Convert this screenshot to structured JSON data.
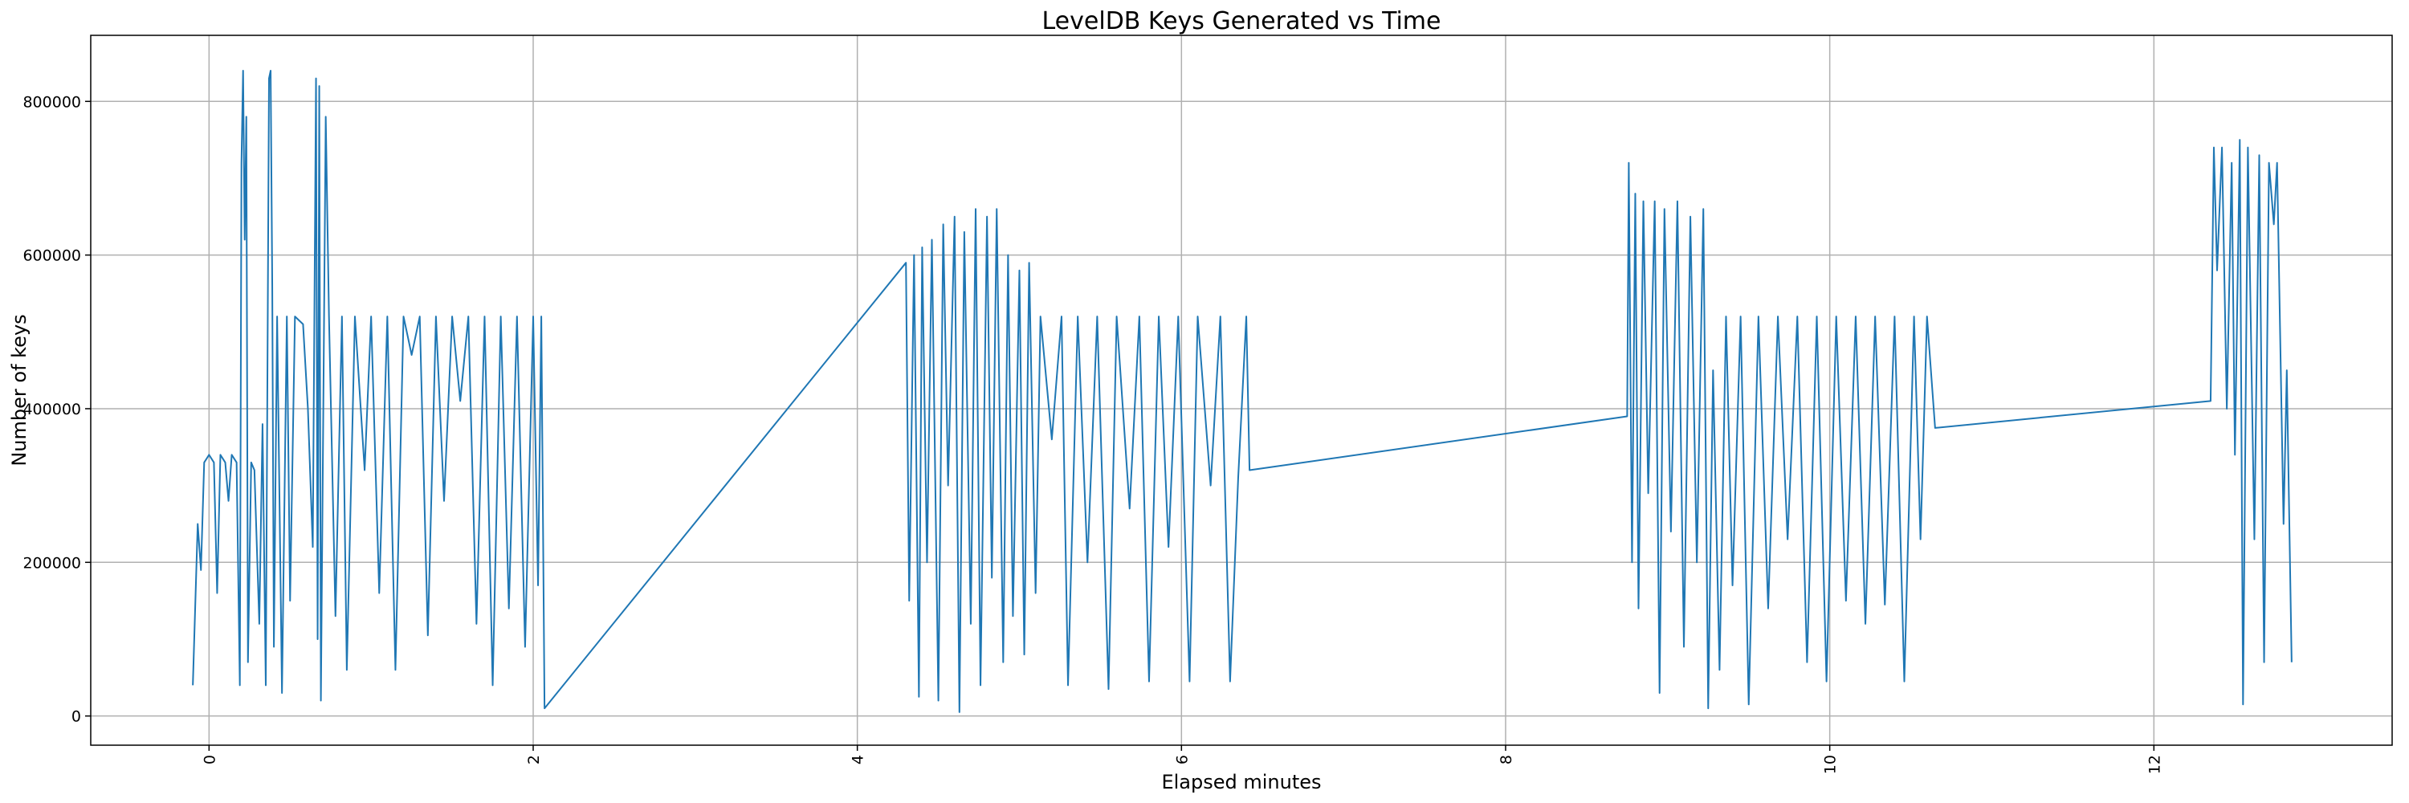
{
  "chart_data": {
    "type": "line",
    "title": "LevelDB Keys Generated vs Time",
    "x_label": "Elapsed minutes",
    "y_label": "Number of keys",
    "color": "#1f77b4",
    "grid": true,
    "xlim": [
      -0.73,
      13.47
    ],
    "ylim": [
      -38000,
      886000
    ],
    "xticks": [
      0,
      2,
      4,
      6,
      8,
      10,
      12
    ],
    "yticks": [
      0,
      200000,
      400000,
      600000,
      800000
    ],
    "x": [
      -0.1,
      -0.07,
      -0.05,
      -0.03,
      0,
      0.03,
      0.05,
      0.07,
      0.1,
      0.12,
      0.14,
      0.17,
      0.19,
      0.2,
      0.21,
      0.22,
      0.23,
      0.24,
      0.26,
      0.28,
      0.31,
      0.33,
      0.35,
      0.37,
      0.38,
      0.39,
      0.4,
      0.42,
      0.45,
      0.48,
      0.5,
      0.53,
      0.58,
      0.61,
      0.64,
      0.66,
      0.67,
      0.68,
      0.69,
      0.72,
      0.74,
      0.78,
      0.82,
      0.85,
      0.9,
      0.96,
      1.0,
      1.05,
      1.1,
      1.15,
      1.2,
      1.25,
      1.3,
      1.35,
      1.4,
      1.45,
      1.5,
      1.55,
      1.6,
      1.65,
      1.7,
      1.75,
      1.8,
      1.85,
      1.9,
      1.95,
      2.0,
      2.03,
      2.05,
      2.07,
      4.3,
      4.32,
      4.35,
      4.38,
      4.4,
      4.43,
      4.46,
      4.5,
      4.53,
      4.56,
      4.6,
      4.63,
      4.66,
      4.7,
      4.73,
      4.76,
      4.8,
      4.83,
      4.86,
      4.9,
      4.93,
      4.96,
      5.0,
      5.03,
      5.06,
      5.1,
      5.13,
      5.2,
      5.26,
      5.3,
      5.36,
      5.42,
      5.48,
      5.55,
      5.6,
      5.68,
      5.74,
      5.8,
      5.86,
      5.92,
      5.98,
      6.05,
      6.1,
      6.18,
      6.24,
      6.3,
      6.35,
      6.4,
      6.42,
      8.75,
      8.76,
      8.78,
      8.8,
      8.82,
      8.85,
      8.88,
      8.92,
      8.95,
      8.98,
      9.02,
      9.06,
      9.1,
      9.14,
      9.18,
      9.22,
      9.25,
      9.28,
      9.32,
      9.36,
      9.4,
      9.45,
      9.5,
      9.56,
      9.62,
      9.68,
      9.74,
      9.8,
      9.86,
      9.92,
      9.98,
      10.04,
      10.1,
      10.16,
      10.22,
      10.28,
      10.34,
      10.4,
      10.46,
      10.52,
      10.56,
      10.6,
      10.65,
      12.35,
      12.37,
      12.39,
      12.42,
      12.45,
      12.48,
      12.5,
      12.53,
      12.55,
      12.58,
      12.62,
      12.65,
      12.68,
      12.71,
      12.74,
      12.76,
      12.8,
      12.82,
      12.85
    ],
    "values": [
      40000,
      250000,
      190000,
      330000,
      340000,
      330000,
      160000,
      340000,
      330000,
      280000,
      340000,
      330000,
      40000,
      720000,
      840000,
      620000,
      780000,
      70000,
      330000,
      320000,
      120000,
      380000,
      40000,
      830000,
      840000,
      560000,
      90000,
      520000,
      30000,
      520000,
      150000,
      520000,
      510000,
      400000,
      220000,
      830000,
      100000,
      820000,
      20000,
      780000,
      520000,
      130000,
      520000,
      60000,
      520000,
      320000,
      520000,
      160000,
      520000,
      60000,
      520000,
      470000,
      520000,
      105000,
      520000,
      280000,
      520000,
      410000,
      520000,
      120000,
      520000,
      40000,
      520000,
      140000,
      520000,
      90000,
      520000,
      170000,
      520000,
      10000,
      590000,
      150000,
      600000,
      25000,
      610000,
      200000,
      620000,
      20000,
      640000,
      300000,
      650000,
      5000,
      630000,
      120000,
      660000,
      40000,
      650000,
      180000,
      660000,
      70000,
      600000,
      130000,
      580000,
      80000,
      590000,
      160000,
      520000,
      360000,
      520000,
      40000,
      520000,
      200000,
      520000,
      35000,
      520000,
      270000,
      520000,
      45000,
      520000,
      220000,
      520000,
      45000,
      520000,
      300000,
      520000,
      45000,
      310000,
      520000,
      320000,
      390000,
      720000,
      200000,
      680000,
      140000,
      670000,
      290000,
      670000,
      30000,
      660000,
      240000,
      670000,
      90000,
      650000,
      200000,
      660000,
      10000,
      450000,
      60000,
      520000,
      170000,
      520000,
      15000,
      520000,
      140000,
      520000,
      230000,
      520000,
      70000,
      520000,
      45000,
      520000,
      150000,
      520000,
      120000,
      520000,
      145000,
      520000,
      45000,
      520000,
      230000,
      520000,
      375000,
      410000,
      740000,
      580000,
      740000,
      400000,
      720000,
      340000,
      750000,
      15000,
      740000,
      230000,
      730000,
      70000,
      720000,
      640000,
      720000,
      250000,
      450000,
      70000
    ]
  }
}
